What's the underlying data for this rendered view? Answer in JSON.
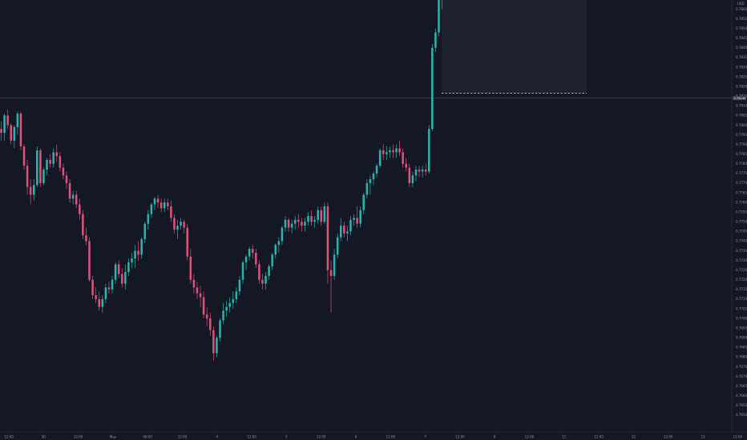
{
  "chart": {
    "currency": "USD",
    "current_price": "0.78140",
    "colors": {
      "background": "#141824",
      "up": "#2bb3b1",
      "down": "#e0517c",
      "axis_text": "#8f94a3",
      "axis_line": "#2f3444",
      "price_line": "#5a6072",
      "zone_fill": "#1e2230",
      "zone_border": "#d5d8de",
      "badge": "#3a3f4c"
    }
  },
  "chart_data": {
    "type": "candlestick",
    "ylim": [
      0.7645,
      0.7865
    ],
    "grid": false,
    "y_ticks": [
      "0.78600",
      "0.78550",
      "0.78500",
      "0.78450",
      "0.78400",
      "0.78350",
      "0.78300",
      "0.78250",
      "0.78200",
      "0.78150",
      "0.78100",
      "0.78050",
      "0.78000",
      "0.77950",
      "0.77900",
      "0.77850",
      "0.77800",
      "0.77750",
      "0.77700",
      "0.77650",
      "0.77600",
      "0.77550",
      "0.77500",
      "0.77450",
      "0.77400",
      "0.77350",
      "0.77300",
      "0.77250",
      "0.77200",
      "0.77150",
      "0.77100",
      "0.77050",
      "0.77000",
      "0.76950",
      "0.76900",
      "0.76850",
      "0.76800",
      "0.76750",
      "0.76700",
      "0.76650",
      "0.76600",
      "0.76550",
      "0.76500"
    ],
    "x_ticks": [
      "12:00",
      "30",
      "12:00",
      "May",
      "06:00",
      "12:00",
      "4",
      "12:00",
      "5",
      "12:00",
      "6",
      "12:00",
      "7",
      "12:00",
      "8",
      "12:00",
      "11",
      "12:00",
      "12",
      "12:00",
      "13",
      "12:00"
    ],
    "candles_ohlc": [
      [
        0.7798,
        0.7802,
        0.7792,
        0.7796
      ],
      [
        0.7796,
        0.7806,
        0.7792,
        0.7805
      ],
      [
        0.7805,
        0.7808,
        0.7798,
        0.78
      ],
      [
        0.78,
        0.7801,
        0.779,
        0.7792
      ],
      [
        0.7792,
        0.78,
        0.7788,
        0.7799
      ],
      [
        0.7799,
        0.7807,
        0.7795,
        0.7806
      ],
      [
        0.7806,
        0.7807,
        0.7787,
        0.7789
      ],
      [
        0.7789,
        0.779,
        0.7777,
        0.7779
      ],
      [
        0.7779,
        0.7782,
        0.7764,
        0.7768
      ],
      [
        0.7768,
        0.7772,
        0.7759,
        0.7764
      ],
      [
        0.7764,
        0.7772,
        0.7761,
        0.7769
      ],
      [
        0.7769,
        0.7789,
        0.7768,
        0.7787
      ],
      [
        0.7787,
        0.7788,
        0.7768,
        0.777
      ],
      [
        0.777,
        0.7778,
        0.7769,
        0.7777
      ],
      [
        0.7777,
        0.7783,
        0.7774,
        0.7782
      ],
      [
        0.7782,
        0.7785,
        0.7778,
        0.778
      ],
      [
        0.778,
        0.7788,
        0.7778,
        0.7786
      ],
      [
        0.7786,
        0.779,
        0.7781,
        0.7784
      ],
      [
        0.7784,
        0.7786,
        0.7776,
        0.7778
      ],
      [
        0.7778,
        0.778,
        0.7772,
        0.7774
      ],
      [
        0.7774,
        0.7776,
        0.7767,
        0.777
      ],
      [
        0.777,
        0.7772,
        0.776,
        0.7762
      ],
      [
        0.7762,
        0.7766,
        0.7759,
        0.7764
      ],
      [
        0.7764,
        0.7766,
        0.7757,
        0.7759
      ],
      [
        0.7759,
        0.7762,
        0.7751,
        0.7754
      ],
      [
        0.7754,
        0.7756,
        0.7741,
        0.7743
      ],
      [
        0.7743,
        0.7747,
        0.7738,
        0.774
      ],
      [
        0.774,
        0.7742,
        0.7719,
        0.772
      ],
      [
        0.772,
        0.7722,
        0.771,
        0.7712
      ],
      [
        0.7712,
        0.7716,
        0.7708,
        0.771
      ],
      [
        0.771,
        0.7714,
        0.7704,
        0.7706
      ],
      [
        0.7706,
        0.7712,
        0.7703,
        0.771
      ],
      [
        0.771,
        0.7718,
        0.7708,
        0.7716
      ],
      [
        0.7716,
        0.7719,
        0.7713,
        0.7715
      ],
      [
        0.7715,
        0.7722,
        0.7713,
        0.772
      ],
      [
        0.772,
        0.7729,
        0.7718,
        0.7728
      ],
      [
        0.7728,
        0.773,
        0.7721,
        0.7723
      ],
      [
        0.7723,
        0.7726,
        0.7716,
        0.7718
      ],
      [
        0.7718,
        0.7728,
        0.7715,
        0.7724
      ],
      [
        0.7724,
        0.7731,
        0.7722,
        0.7729
      ],
      [
        0.7729,
        0.7734,
        0.7726,
        0.7731
      ],
      [
        0.7731,
        0.7738,
        0.7726,
        0.7735
      ],
      [
        0.7735,
        0.774,
        0.773,
        0.7733
      ],
      [
        0.7733,
        0.7742,
        0.7731,
        0.7741
      ],
      [
        0.7741,
        0.775,
        0.7739,
        0.7749
      ],
      [
        0.7749,
        0.7756,
        0.7746,
        0.7754
      ],
      [
        0.7754,
        0.776,
        0.7752,
        0.7759
      ],
      [
        0.7759,
        0.7763,
        0.7756,
        0.7762
      ],
      [
        0.7762,
        0.7764,
        0.7757,
        0.776
      ],
      [
        0.776,
        0.7762,
        0.7755,
        0.7757
      ],
      [
        0.7757,
        0.7762,
        0.7755,
        0.776
      ],
      [
        0.776,
        0.7762,
        0.7756,
        0.7758
      ],
      [
        0.7758,
        0.7761,
        0.775,
        0.7752
      ],
      [
        0.7752,
        0.7754,
        0.7744,
        0.7746
      ],
      [
        0.7746,
        0.7751,
        0.7741,
        0.7748
      ],
      [
        0.7748,
        0.7752,
        0.7746,
        0.775
      ],
      [
        0.775,
        0.7751,
        0.7744,
        0.7747
      ],
      [
        0.7747,
        0.7749,
        0.773,
        0.7732
      ],
      [
        0.7732,
        0.7736,
        0.7718,
        0.772
      ],
      [
        0.772,
        0.7723,
        0.7713,
        0.7716
      ],
      [
        0.7716,
        0.7719,
        0.771,
        0.7713
      ],
      [
        0.7713,
        0.7717,
        0.7706,
        0.7711
      ],
      [
        0.7711,
        0.7714,
        0.77,
        0.7702
      ],
      [
        0.7702,
        0.7706,
        0.7696,
        0.77
      ],
      [
        0.77,
        0.7703,
        0.7691,
        0.7694
      ],
      [
        0.7694,
        0.7696,
        0.7678,
        0.7682
      ],
      [
        0.7682,
        0.7691,
        0.768,
        0.769
      ],
      [
        0.769,
        0.77,
        0.7688,
        0.7699
      ],
      [
        0.7699,
        0.7708,
        0.7697,
        0.7704
      ],
      [
        0.7704,
        0.7709,
        0.7701,
        0.7706
      ],
      [
        0.7706,
        0.7711,
        0.7703,
        0.7708
      ],
      [
        0.7708,
        0.7714,
        0.7705,
        0.771
      ],
      [
        0.771,
        0.7716,
        0.7708,
        0.7714
      ],
      [
        0.7714,
        0.7722,
        0.7712,
        0.772
      ],
      [
        0.772,
        0.773,
        0.7718,
        0.7729
      ],
      [
        0.7729,
        0.7733,
        0.7725,
        0.7732
      ],
      [
        0.7732,
        0.7737,
        0.773,
        0.7736
      ],
      [
        0.7736,
        0.7738,
        0.7731,
        0.7734
      ],
      [
        0.7734,
        0.7736,
        0.7726,
        0.7728
      ],
      [
        0.7728,
        0.773,
        0.7718,
        0.772
      ],
      [
        0.772,
        0.7723,
        0.7715,
        0.7718
      ],
      [
        0.7718,
        0.7724,
        0.7715,
        0.7722
      ],
      [
        0.7722,
        0.7728,
        0.772,
        0.7727
      ],
      [
        0.7727,
        0.7734,
        0.7725,
        0.7733
      ],
      [
        0.7733,
        0.7739,
        0.7731,
        0.7738
      ],
      [
        0.7738,
        0.7742,
        0.7734,
        0.774
      ],
      [
        0.774,
        0.7748,
        0.7738,
        0.7747
      ],
      [
        0.7747,
        0.7753,
        0.7745,
        0.7751
      ],
      [
        0.7751,
        0.7752,
        0.7745,
        0.7747
      ],
      [
        0.7747,
        0.7751,
        0.7744,
        0.7749
      ],
      [
        0.7749,
        0.7753,
        0.7746,
        0.7751
      ],
      [
        0.7751,
        0.7754,
        0.7747,
        0.775
      ],
      [
        0.775,
        0.7752,
        0.7745,
        0.7748
      ],
      [
        0.7748,
        0.7752,
        0.7745,
        0.775
      ],
      [
        0.775,
        0.7755,
        0.7748,
        0.7753
      ],
      [
        0.7753,
        0.7756,
        0.7748,
        0.775
      ],
      [
        0.775,
        0.7753,
        0.7747,
        0.7751
      ],
      [
        0.7751,
        0.7758,
        0.7749,
        0.7756
      ],
      [
        0.7756,
        0.7758,
        0.7748,
        0.775
      ],
      [
        0.775,
        0.776,
        0.7749,
        0.7758
      ],
      [
        0.7758,
        0.776,
        0.7718,
        0.7725
      ],
      [
        0.7725,
        0.773,
        0.7703,
        0.7722
      ],
      [
        0.7722,
        0.7736,
        0.772,
        0.7733
      ],
      [
        0.7733,
        0.7744,
        0.7731,
        0.7742
      ],
      [
        0.7742,
        0.7752,
        0.774,
        0.7748
      ],
      [
        0.7748,
        0.775,
        0.7742,
        0.7744
      ],
      [
        0.7744,
        0.7748,
        0.774,
        0.7745
      ],
      [
        0.7745,
        0.7753,
        0.7743,
        0.7751
      ],
      [
        0.7751,
        0.7754,
        0.7748,
        0.7752
      ],
      [
        0.7752,
        0.7758,
        0.7747,
        0.7749
      ],
      [
        0.7749,
        0.7758,
        0.7747,
        0.7756
      ],
      [
        0.7756,
        0.7765,
        0.7754,
        0.7764
      ],
      [
        0.7764,
        0.7772,
        0.7762,
        0.777
      ],
      [
        0.777,
        0.7774,
        0.7764,
        0.7772
      ],
      [
        0.7772,
        0.7776,
        0.7769,
        0.7775
      ],
      [
        0.7775,
        0.778,
        0.7773,
        0.7779
      ],
      [
        0.7779,
        0.7788,
        0.7778,
        0.7787
      ],
      [
        0.7787,
        0.779,
        0.7782,
        0.7785
      ],
      [
        0.7785,
        0.7789,
        0.7782,
        0.7786
      ],
      [
        0.7786,
        0.7789,
        0.7783,
        0.7787
      ],
      [
        0.7787,
        0.779,
        0.7783,
        0.7786
      ],
      [
        0.7786,
        0.779,
        0.7783,
        0.7788
      ],
      [
        0.7788,
        0.7792,
        0.7784,
        0.7786
      ],
      [
        0.7786,
        0.7788,
        0.7778,
        0.778
      ],
      [
        0.778,
        0.7783,
        0.7776,
        0.7778
      ],
      [
        0.7778,
        0.778,
        0.7768,
        0.777
      ],
      [
        0.777,
        0.7776,
        0.7768,
        0.7774
      ],
      [
        0.7774,
        0.7779,
        0.7771,
        0.7777
      ],
      [
        0.7777,
        0.7779,
        0.7773,
        0.7776
      ],
      [
        0.7776,
        0.7779,
        0.7773,
        0.7777
      ],
      [
        0.7777,
        0.778,
        0.7774,
        0.7776
      ],
      [
        0.7776,
        0.78,
        0.7775,
        0.7798
      ],
      [
        0.7798,
        0.7842,
        0.7797,
        0.784
      ],
      [
        0.784,
        0.785,
        0.7838,
        0.7848
      ],
      [
        0.7848,
        0.7868,
        0.7846,
        0.7865
      ],
      [
        0.7865,
        0.7884,
        0.786,
        0.7882
      ],
      [
        0.7882,
        0.7883,
        0.787,
        0.7872
      ],
      [
        0.7872,
        0.7876,
        0.7869,
        0.7871
      ],
      [
        0.7871,
        0.7875,
        0.7868,
        0.7873
      ],
      [
        0.7873,
        0.7876,
        0.787,
        0.7874
      ],
      [
        0.7874,
        0.7878,
        0.787,
        0.7876
      ],
      [
        0.7876,
        0.7877,
        0.7868,
        0.7869
      ]
    ],
    "zone": {
      "top": 0.7885,
      "bottom": 0.78165
    },
    "current_price": 0.7814
  }
}
